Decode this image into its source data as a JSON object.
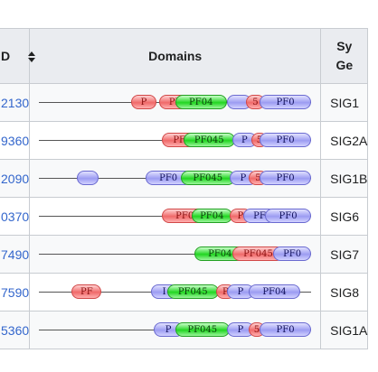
{
  "table": {
    "headers": {
      "id": "D",
      "domains": "Domains",
      "symbol_line1": "Sy",
      "symbol_line2": "Ge"
    },
    "rows": [
      {
        "id": "2130",
        "symbol": "SIG1",
        "domains": [
          {
            "label": "P",
            "color": "red",
            "start": 0.34,
            "end": 0.43
          },
          {
            "label": "PF",
            "color": "red",
            "start": 0.44,
            "end": 0.56
          },
          {
            "label": "PF04",
            "color": "green",
            "start": 0.5,
            "end": 0.69
          },
          {
            "label": "",
            "color": "blue",
            "start": 0.69,
            "end": 0.78
          },
          {
            "label": "5",
            "color": "red",
            "start": 0.76,
            "end": 0.83
          },
          {
            "label": "PF0",
            "color": "blue",
            "start": 0.81,
            "end": 1.0
          }
        ]
      },
      {
        "id": "9360",
        "symbol": "SIG2A",
        "domains": [
          {
            "label": "PF",
            "color": "red",
            "start": 0.45,
            "end": 0.58
          },
          {
            "label": "PF045",
            "color": "green",
            "start": 0.53,
            "end": 0.72
          },
          {
            "label": "P",
            "color": "blue",
            "start": 0.71,
            "end": 0.8
          },
          {
            "label": "5",
            "color": "red",
            "start": 0.78,
            "end": 0.84
          },
          {
            "label": "PF0",
            "color": "blue",
            "start": 0.81,
            "end": 1.0
          }
        ]
      },
      {
        "id": "2090",
        "symbol": "SIG1B",
        "domains": [
          {
            "label": "",
            "color": "blue",
            "start": 0.14,
            "end": 0.22
          },
          {
            "label": "PF0",
            "color": "blue",
            "start": 0.39,
            "end": 0.56
          },
          {
            "label": "PF045",
            "color": "green",
            "start": 0.52,
            "end": 0.72
          },
          {
            "label": "P",
            "color": "blue",
            "start": 0.7,
            "end": 0.8
          },
          {
            "label": "5",
            "color": "red",
            "start": 0.77,
            "end": 0.84
          },
          {
            "label": "PF0",
            "color": "blue",
            "start": 0.81,
            "end": 1.0
          }
        ]
      },
      {
        "id": "0370",
        "symbol": "SIG6",
        "domains": [
          {
            "label": "PF0",
            "color": "red",
            "start": 0.45,
            "end": 0.62
          },
          {
            "label": "PF04",
            "color": "green",
            "start": 0.56,
            "end": 0.71
          },
          {
            "label": "P",
            "color": "red",
            "start": 0.7,
            "end": 0.78
          },
          {
            "label": "PF",
            "color": "blue",
            "start": 0.75,
            "end": 0.87
          },
          {
            "label": "PF0",
            "color": "blue",
            "start": 0.83,
            "end": 1.0
          }
        ]
      },
      {
        "id": "7490",
        "symbol": "SIG7",
        "domains": [
          {
            "label": "PF04",
            "color": "green",
            "start": 0.57,
            "end": 0.76
          },
          {
            "label": "PF045",
            "color": "red",
            "start": 0.71,
            "end": 0.9
          },
          {
            "label": "PF0",
            "color": "blue",
            "start": 0.86,
            "end": 1.0
          }
        ]
      },
      {
        "id": "7590",
        "symbol": "SIG8",
        "domains": [
          {
            "label": "PF",
            "color": "red",
            "start": 0.12,
            "end": 0.23
          },
          {
            "label": "I",
            "color": "blue",
            "start": 0.41,
            "end": 0.51
          },
          {
            "label": "PF045",
            "color": "green",
            "start": 0.47,
            "end": 0.66
          },
          {
            "label": "P",
            "color": "red",
            "start": 0.65,
            "end": 0.72
          },
          {
            "label": "P",
            "color": "blue",
            "start": 0.69,
            "end": 0.79
          },
          {
            "label": "PF04",
            "color": "blue",
            "start": 0.77,
            "end": 0.96
          }
        ]
      },
      {
        "id": "5360",
        "symbol": "SIG1A",
        "domains": [
          {
            "label": "P",
            "color": "blue",
            "start": 0.42,
            "end": 0.53
          },
          {
            "label": "PF045",
            "color": "green",
            "start": 0.5,
            "end": 0.7
          },
          {
            "label": "P",
            "color": "blue",
            "start": 0.69,
            "end": 0.79
          },
          {
            "label": "5",
            "color": "red",
            "start": 0.77,
            "end": 0.83
          },
          {
            "label": "PF0",
            "color": "blue",
            "start": 0.81,
            "end": 1.0
          }
        ]
      }
    ]
  }
}
